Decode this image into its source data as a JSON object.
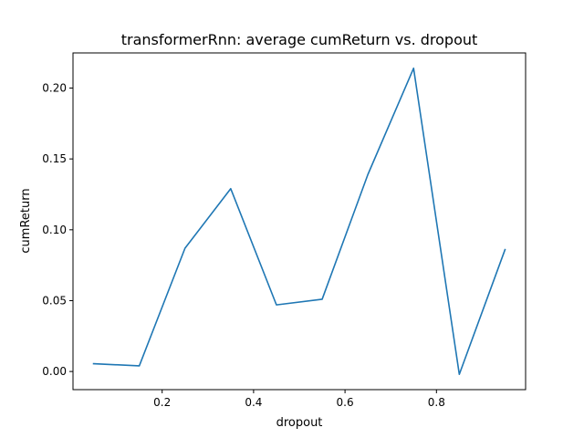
{
  "chart_data": {
    "type": "line",
    "title": "transformerRnn: average cumReturn vs. dropout",
    "xlabel": "dropout",
    "ylabel": "cumReturn",
    "xlim": [
      0.005,
      0.995
    ],
    "ylim": [
      -0.0128,
      0.2248
    ],
    "x_ticks": [
      0.2,
      0.4,
      0.6,
      0.8
    ],
    "x_tick_labels": [
      "0.2",
      "0.4",
      "0.6",
      "0.8"
    ],
    "y_ticks": [
      0.0,
      0.05,
      0.1,
      0.15,
      0.2
    ],
    "y_tick_labels": [
      "0.00",
      "0.05",
      "0.10",
      "0.15",
      "0.20"
    ],
    "grid": false,
    "legend": "none",
    "series": [
      {
        "color": "#1f77b4",
        "x": [
          0.05,
          0.15,
          0.25,
          0.35,
          0.45,
          0.55,
          0.65,
          0.75,
          0.85,
          0.95
        ],
        "y": [
          0.0055,
          0.004,
          0.087,
          0.129,
          0.047,
          0.051,
          0.139,
          0.214,
          -0.002,
          0.086
        ]
      }
    ]
  }
}
